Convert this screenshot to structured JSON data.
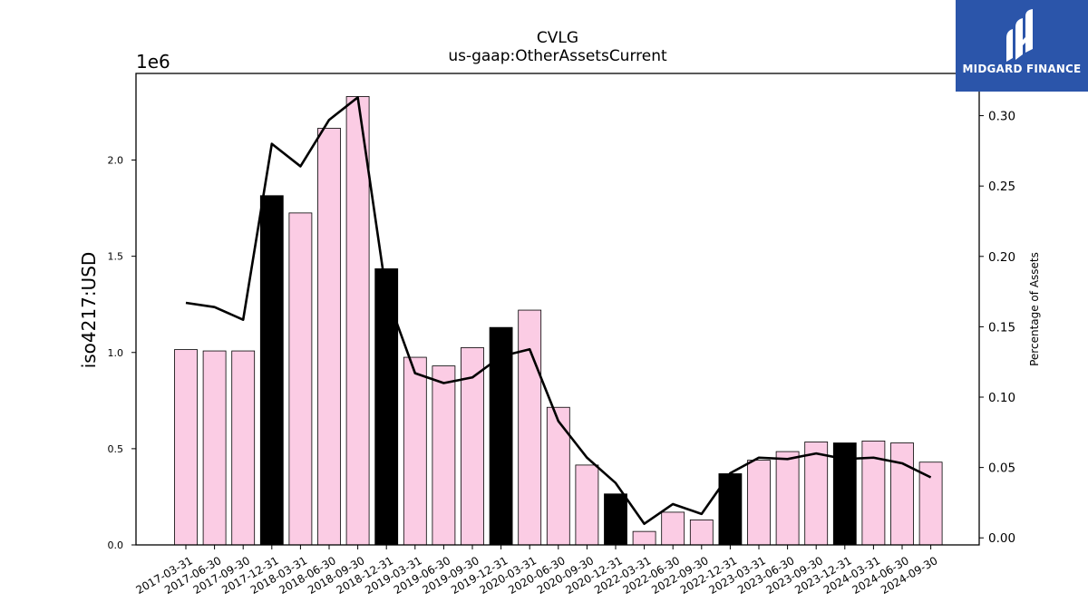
{
  "chart_data": {
    "type": "bar",
    "title": "CVLG",
    "subtitle": "us-gaap:OtherAssetsCurrent",
    "ylabel": "iso4217:USD",
    "y_exponent_label": "1e6",
    "y2label": "Percentage of Assets",
    "ylim": [
      0,
      2450000
    ],
    "y2lim": [
      -0.005,
      0.33
    ],
    "yticks": [
      "0.0",
      "0.5",
      "1.0",
      "1.5",
      "2.0"
    ],
    "y2ticks": [
      "0.00",
      "0.05",
      "0.10",
      "0.15",
      "0.20",
      "0.25",
      "0.30"
    ],
    "categories": [
      "2017-03-31",
      "2017-06-30",
      "2017-09-30",
      "2017-12-31",
      "2018-03-31",
      "2018-06-30",
      "2018-09-30",
      "2018-12-31",
      "2019-03-31",
      "2019-06-30",
      "2019-09-30",
      "2019-12-31",
      "2020-03-31",
      "2020-06-30",
      "2020-09-30",
      "2020-12-31",
      "2022-03-31",
      "2022-06-30",
      "2022-09-30",
      "2022-12-31",
      "2023-03-31",
      "2023-06-30",
      "2023-09-30",
      "2023-12-31",
      "2024-03-31",
      "2024-06-30",
      "2024-09-30"
    ],
    "series": [
      {
        "values": [
          1015000,
          1008000,
          1008000,
          1815000,
          1725000,
          2165000,
          2330000,
          1435000,
          975000,
          930000,
          1025000,
          1130000,
          1220000,
          715000,
          415000,
          265000,
          70000,
          170000,
          130000,
          370000,
          440000,
          485000,
          535000,
          530000,
          540000,
          530000,
          430000
        ],
        "highlight": [
          false,
          false,
          false,
          true,
          false,
          false,
          false,
          true,
          false,
          false,
          false,
          true,
          false,
          false,
          false,
          true,
          false,
          false,
          false,
          true,
          false,
          false,
          false,
          true,
          false,
          false,
          false
        ],
        "color": "#fbcce4",
        "highlight_color": "#000000"
      },
      {
        "values": [
          0.167,
          0.164,
          0.155,
          0.28,
          0.264,
          0.297,
          0.313,
          0.173,
          0.117,
          0.11,
          0.114,
          0.129,
          0.134,
          0.083,
          0.057,
          0.039,
          0.01,
          0.024,
          0.017,
          0.046,
          0.057,
          0.056,
          0.06,
          0.056,
          0.057,
          0.053,
          0.043
        ],
        "axis": "right",
        "color": "#000000"
      }
    ],
    "grid": false
  },
  "logo": {
    "text": "MIDGARD FINANCE",
    "color": "#2b55aa"
  }
}
